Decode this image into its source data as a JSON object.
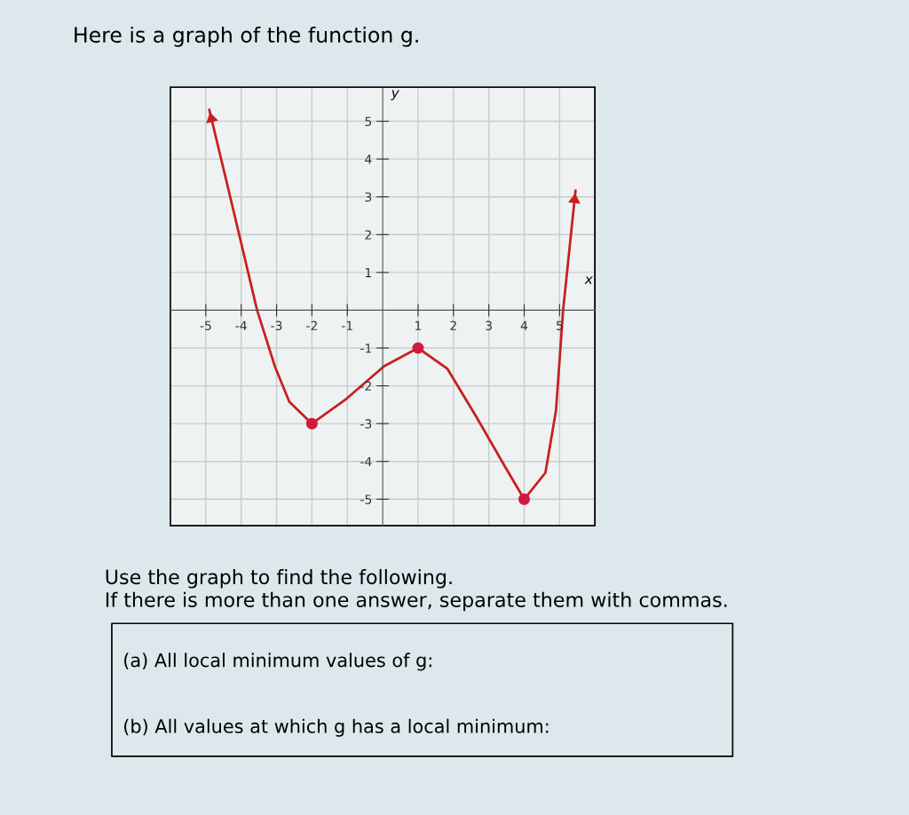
{
  "chart_data": {
    "type": "line",
    "title": "Here is a graph of the function g.",
    "xlabel": "x",
    "ylabel": "y",
    "xlim": [
      -6,
      6
    ],
    "ylim": [
      -5.7,
      5.9
    ],
    "xticks": [
      -5,
      -4,
      -3,
      -2,
      -1,
      1,
      2,
      3,
      4,
      5
    ],
    "yticks": [
      -5,
      -4,
      -3,
      -2,
      -1,
      1,
      2,
      3,
      4,
      5
    ],
    "grid": true,
    "series": [
      {
        "color": "#c8201e",
        "marker": "none",
        "x": [
          -4.9,
          -4.27,
          -3.55,
          -3.05,
          -2.64,
          -2,
          -1.02,
          0.04,
          1,
          1.83,
          2.64,
          3.46,
          4,
          4.6,
          4.9,
          5.1,
          5.45
        ],
        "values": [
          5.3,
          2.84,
          0,
          -1.48,
          -2.42,
          -3,
          -2.34,
          -1.48,
          -1,
          -1.55,
          -2.81,
          -4.14,
          -5,
          -4.3,
          -2.65,
          0,
          3.16
        ]
      },
      {
        "type": "scatter",
        "color": "#d01c3c",
        "marker": "circle",
        "x": [
          -2,
          1,
          4
        ],
        "values": [
          -3,
          -1,
          -5
        ]
      }
    ],
    "annotations": [
      "Use the graph to find the following.",
      "If there is more than one answer, separate them with commas.",
      "(a) All local minimum values of g:",
      "(b) All values at which g has a local minimum:"
    ]
  }
}
